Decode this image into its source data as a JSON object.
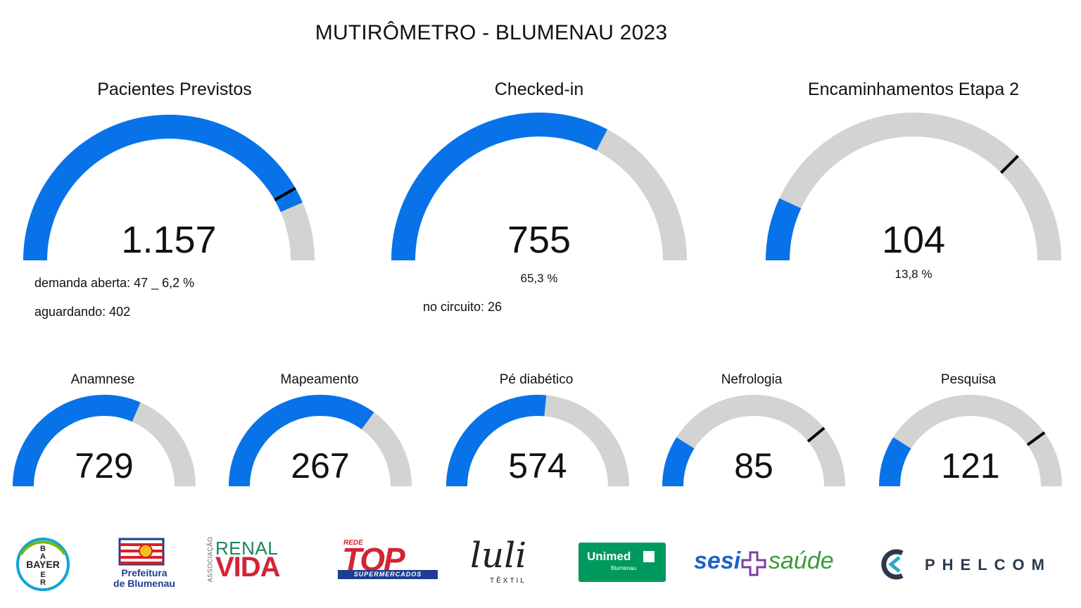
{
  "title": "MUTIRÔMETRO - BLUMENAU 2023",
  "colors": {
    "fill": "#0873e9",
    "track": "#d3d3d3",
    "target": "#000000",
    "text": "#111111"
  },
  "chart_data": [
    {
      "type": "gauge",
      "title": "Pacientes Previstos",
      "value": 1157,
      "value_label": "1.157",
      "fraction": 0.87,
      "target_fraction": 0.835,
      "notes": [
        "demanda aberta: 47 _ 6,2 %",
        "aguardando: 402"
      ]
    },
    {
      "type": "gauge",
      "title": "Checked-in",
      "value": 755,
      "value_label": "755",
      "fraction": 0.653,
      "percent_label": "65,3 %",
      "notes": [
        "no circuito: 26"
      ]
    },
    {
      "type": "gauge",
      "title": "Encaminhamentos Etapa 2",
      "value": 104,
      "value_label": "104",
      "fraction": 0.138,
      "target_fraction": 0.75,
      "percent_label": "13,8 %"
    },
    {
      "type": "gauge",
      "title": "Anamnese",
      "value": 729,
      "value_label": "729",
      "fraction": 0.63
    },
    {
      "type": "gauge",
      "title": "Mapeamento",
      "value": 267,
      "value_label": "267",
      "fraction": 0.7
    },
    {
      "type": "gauge",
      "title": "Pé diabético",
      "value": 574,
      "value_label": "574",
      "fraction": 0.53
    },
    {
      "type": "gauge",
      "title": "Nefrologia",
      "value": 85,
      "value_label": "85",
      "fraction": 0.18,
      "target_fraction": 0.78
    },
    {
      "type": "gauge",
      "title": "Pesquisa",
      "value": 121,
      "value_label": "121",
      "fraction": 0.18,
      "target_fraction": 0.8
    }
  ],
  "logos": {
    "bayer": "BAYER",
    "prefeitura_line1": "Prefeitura",
    "prefeitura_line2": "de Blumenau",
    "renal_small": "ASSOCIAÇÃO",
    "renal_top": "RENAL",
    "renal_bottom": "VIDA",
    "top_rede": "REDE",
    "top_main": "TOP",
    "top_sub": "SUPERMERCADOS",
    "luli_main": "luli",
    "luli_sub": "TÊXTIL",
    "unimed_main": "Unimed",
    "unimed_sub": "Blumenau",
    "sesi_left": "sesi",
    "sesi_right": "saúde",
    "phelcom": "PHELCOM"
  }
}
